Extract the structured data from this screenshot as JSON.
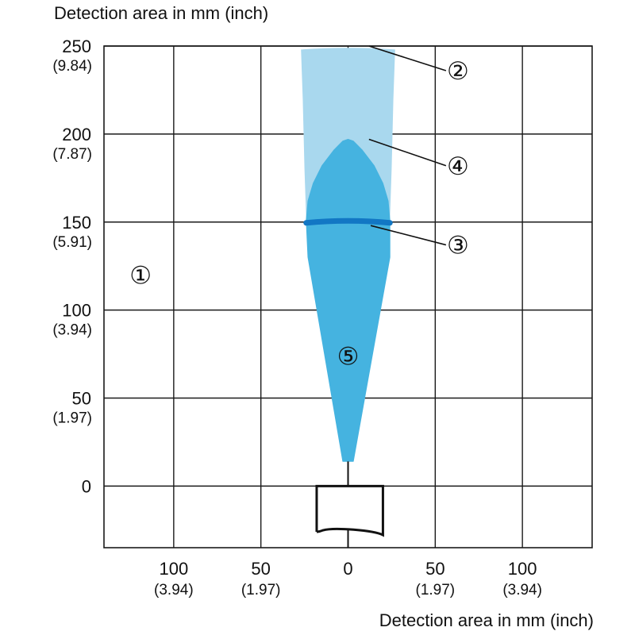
{
  "y_axis_title": "Detection area in mm (inch)",
  "x_axis_title": "Detection area in mm (inch)",
  "colors": {
    "grid": "#1a1a1a",
    "outer_zone": "#a9d8ee",
    "inner_zone": "#45b3e0",
    "focus_band": "#1277c4",
    "sensor_outline": "#111111",
    "background": "#ffffff"
  },
  "chart_data": {
    "type": "area",
    "xlabel": "Detection area in mm (inch)",
    "ylabel": "Detection area in mm (inch)",
    "xlim": [
      -140,
      140
    ],
    "ylim": [
      -35,
      250
    ],
    "grid": true,
    "x_ticks": [
      {
        "value": -100,
        "mm": "100",
        "inch": "(3.94)"
      },
      {
        "value": -50,
        "mm": "50",
        "inch": "(1.97)"
      },
      {
        "value": 0,
        "mm": "0",
        "inch": ""
      },
      {
        "value": 50,
        "mm": "50",
        "inch": "(1.97)"
      },
      {
        "value": 100,
        "mm": "100",
        "inch": "(3.94)"
      }
    ],
    "y_ticks": [
      {
        "value": 250,
        "mm": "250",
        "inch": "(9.84)"
      },
      {
        "value": 200,
        "mm": "200",
        "inch": "(7.87)"
      },
      {
        "value": 150,
        "mm": "150",
        "inch": "(5.91)"
      },
      {
        "value": 100,
        "mm": "100",
        "inch": "(3.94)"
      },
      {
        "value": 50,
        "mm": "50",
        "inch": "(1.97)"
      },
      {
        "value": 0,
        "mm": "0",
        "inch": ""
      }
    ],
    "series": [
      {
        "marker": "④",
        "x": [
          -27,
          -26,
          -25,
          -24,
          24,
          25,
          26,
          27
        ],
        "y_top": [
          248,
          220,
          180,
          151,
          151,
          180,
          220,
          248
        ],
        "apex_y": 250
      },
      {
        "marker": "⑤",
        "x": [
          -24,
          -23,
          -20,
          -15,
          -8,
          -3,
          0,
          3,
          8,
          15,
          20,
          23,
          24
        ],
        "y_top": [
          151,
          162,
          172,
          182,
          191,
          196,
          197,
          196,
          191,
          182,
          172,
          162,
          151
        ],
        "lower_outline": [
          [
            24,
            151
          ],
          [
            24,
            130
          ],
          [
            3,
            14
          ],
          [
            -3,
            14
          ],
          [
            -23,
            130
          ],
          [
            -24,
            151
          ]
        ]
      },
      {
        "marker": "③",
        "x": [
          -24,
          24
        ],
        "y": [
          150,
          150
        ]
      }
    ],
    "annotations": [
      {
        "text": "①",
        "x": -119,
        "y": 120
      },
      {
        "text": "②",
        "x": 63,
        "y": 236,
        "pointer_to": [
          12,
          250
        ]
      },
      {
        "text": "④",
        "x": 63,
        "y": 182,
        "pointer_to": [
          12,
          197
        ]
      },
      {
        "text": "③",
        "x": 63,
        "y": 137,
        "pointer_to": [
          13,
          148
        ]
      },
      {
        "text": "⑤",
        "x": 0,
        "y": 74
      }
    ]
  }
}
